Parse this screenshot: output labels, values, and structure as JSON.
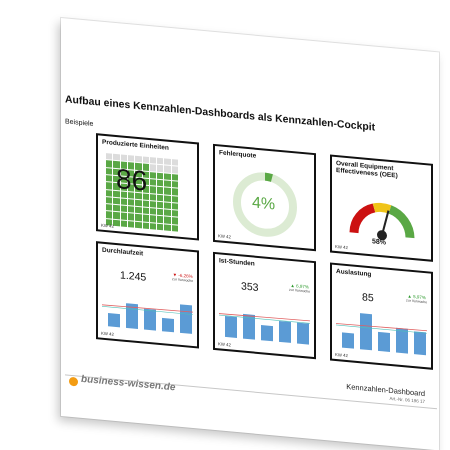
{
  "document": {
    "title": "Aufbau eines Kennzahlen-Dashboards als Kennzahlen-Cockpit",
    "subtitle": "Beispiele",
    "footer_title": "Kennzahlen-Dashboard",
    "article_no": "Art.-Nr. 06 196 17",
    "logo_text": "business-wissen.de",
    "logo_color": "#f39c12"
  },
  "colors": {
    "green": "#5aa845",
    "light_green": "#dcebd3",
    "red": "#cc1111",
    "yellow": "#f0c419",
    "bar_blue": "#5b9bd5",
    "line_red": "#e06060",
    "line_teal": "#4ec0b8"
  },
  "tiles": {
    "units": {
      "title": "Produzierte Einheiten",
      "value": "86",
      "fraction": 0.86,
      "week": "KW 42"
    },
    "error": {
      "title": "Fehlerquote",
      "value": "4%",
      "fraction": 0.04,
      "week": "KW 42"
    },
    "oee": {
      "title": "Overall Equipment Effectiveness (OEE)",
      "value": "58%",
      "fraction": 0.58,
      "week": "KW 42"
    },
    "lead": {
      "title": "Durchlaufzeit",
      "value": "1.245",
      "delta": "▼ -6,26%",
      "delta_sub": "zur Vorwoche",
      "delta_color": "#cc1111",
      "week": "KW 42",
      "bars": [
        0.35,
        0.65,
        0.55,
        0.35,
        0.75
      ],
      "ref_line": 0.55
    },
    "hours": {
      "title": "Ist-Stunden",
      "value": "353",
      "delta": "▲ 6,97%",
      "delta_sub": "zur Vorwoche",
      "delta_color": "#2e9a2e",
      "week": "KW 42",
      "bars": [
        0.55,
        0.65,
        0.4,
        0.55,
        0.55
      ],
      "ref_line": 0.6
    },
    "util": {
      "title": "Auslastung",
      "value": "85",
      "delta": "▲ 5,97%",
      "delta_sub": "zur Vorwoche",
      "delta_color": "#2e9a2e",
      "week": "KW 42",
      "bars": [
        0.4,
        0.95,
        0.5,
        0.65,
        0.6
      ],
      "ref_line": 0.62
    }
  }
}
